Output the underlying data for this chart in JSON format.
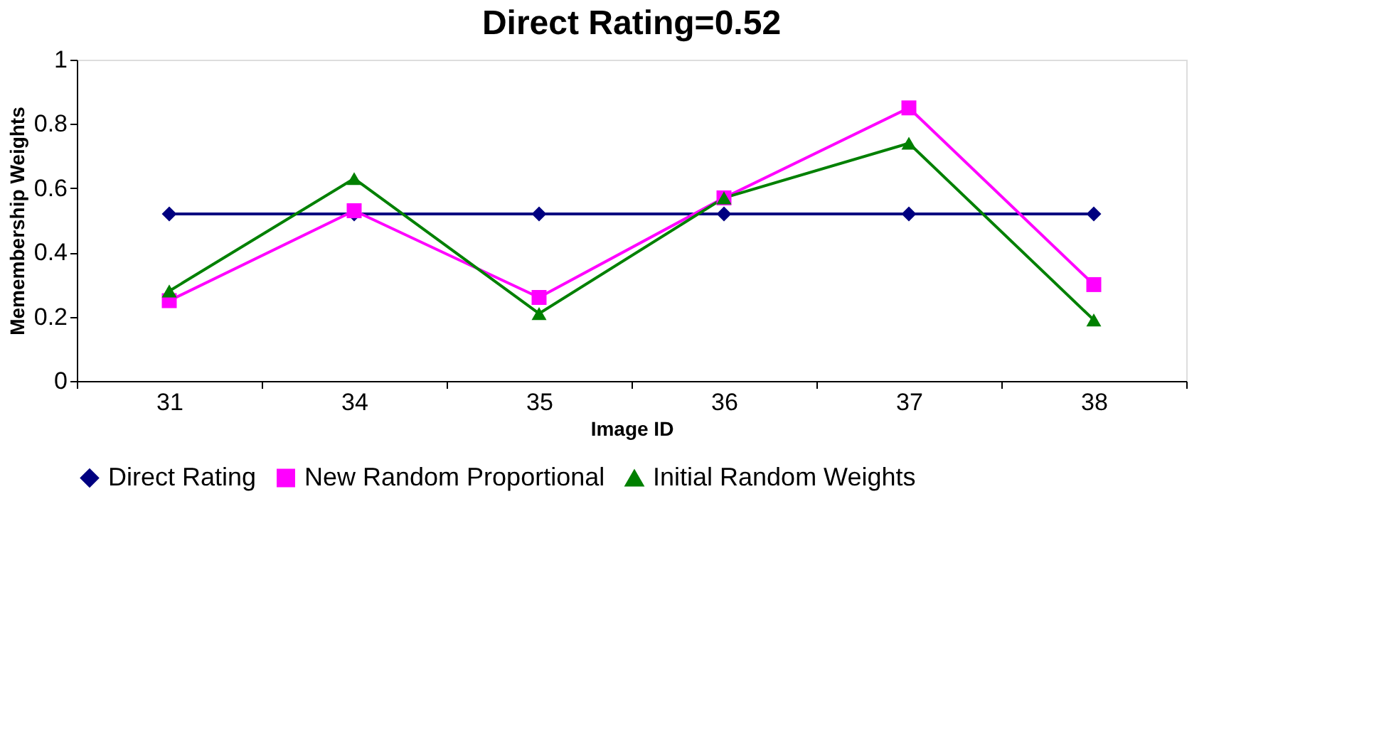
{
  "chart_data": {
    "type": "line",
    "title": "Direct Rating=0.52",
    "xlabel": "Image ID",
    "ylabel": "Memembership Weights",
    "categories": [
      "31",
      "34",
      "35",
      "36",
      "37",
      "38"
    ],
    "series": [
      {
        "name": "Direct Rating",
        "color": "#000080",
        "marker": "diamond",
        "values": [
          0.52,
          0.52,
          0.52,
          0.52,
          0.52,
          0.52
        ]
      },
      {
        "name": "New Random Proportional",
        "color": "#ff00ff",
        "marker": "square",
        "values": [
          0.25,
          0.53,
          0.26,
          0.57,
          0.85,
          0.3
        ]
      },
      {
        "name": "Initial Random Weights",
        "color": "#008000",
        "marker": "triangle",
        "values": [
          0.28,
          0.63,
          0.21,
          0.57,
          0.74,
          0.19
        ]
      }
    ],
    "ylim": [
      0,
      1
    ],
    "yticks": [
      0,
      0.2,
      0.4,
      0.6,
      0.8,
      1
    ],
    "grid": false,
    "legend": "bottom",
    "line_style": "solid"
  }
}
